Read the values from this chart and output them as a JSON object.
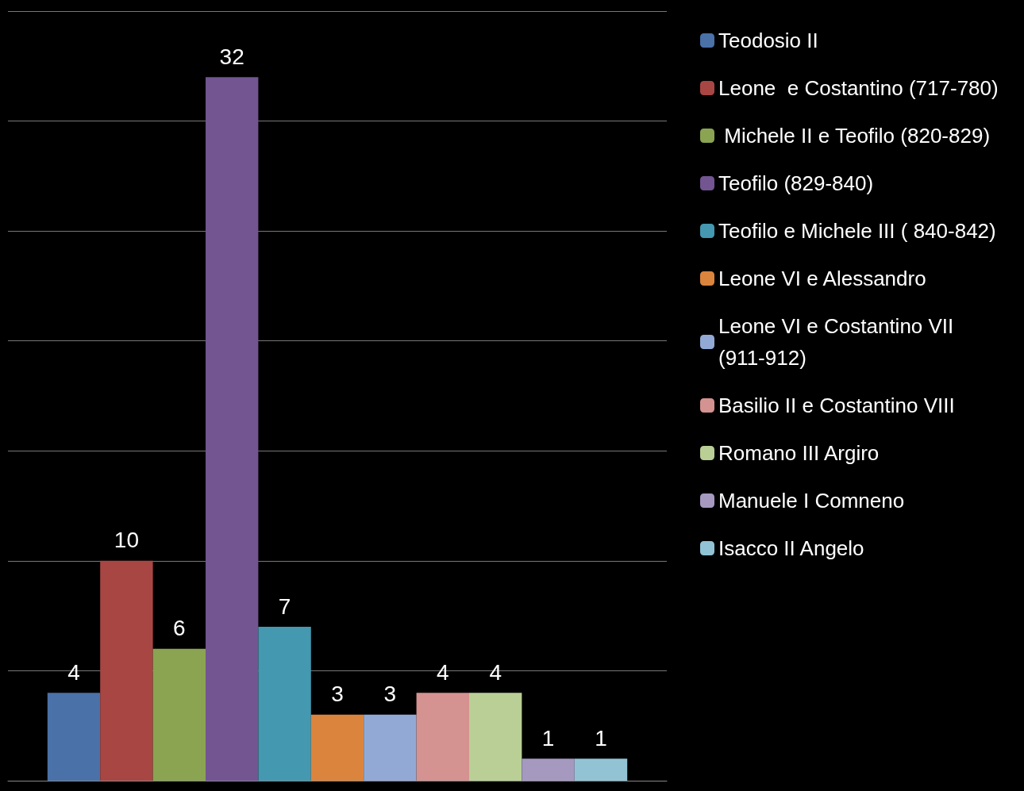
{
  "chart_data": {
    "type": "bar",
    "categories": [
      null
    ],
    "ylim": [
      0,
      35
    ],
    "yticks": [
      0,
      5,
      10,
      15,
      20,
      25,
      30,
      35
    ],
    "tick_labels": false,
    "grid": "y",
    "legend": "right",
    "data_labels": true,
    "series": [
      {
        "name": "Teodosio II",
        "color": "#4a71a8",
        "values": [
          4
        ]
      },
      {
        "name": "Leone  e Costantino (717-780)",
        "color": "#a84644",
        "values": [
          10
        ]
      },
      {
        "name": " Michele II e Teofilo (820-829)",
        "color": "#8aa452",
        "values": [
          6
        ]
      },
      {
        "name": "Teofilo (829-840)",
        "color": "#725591",
        "values": [
          32
        ]
      },
      {
        "name": "Teofilo e Michele III ( 840-842)",
        "color": "#4498b0",
        "values": [
          7
        ]
      },
      {
        "name": "Leone VI e Alessandro",
        "color": "#db843d",
        "values": [
          3
        ]
      },
      {
        "name": "Leone VI e Costantino VII (911-912)",
        "color": "#93a9d5",
        "values": [
          3
        ]
      },
      {
        "name": "Basilio II e Costantino VIII",
        "color": "#d49290",
        "values": [
          4
        ]
      },
      {
        "name": "Romano III Argiro",
        "color": "#b9cf96",
        "values": [
          4
        ]
      },
      {
        "name": "Manuele I Comneno",
        "color": "#a599c0",
        "values": [
          1
        ]
      },
      {
        "name": "Isacco II Angelo",
        "color": "#92c3d5",
        "values": [
          1
        ]
      }
    ]
  }
}
